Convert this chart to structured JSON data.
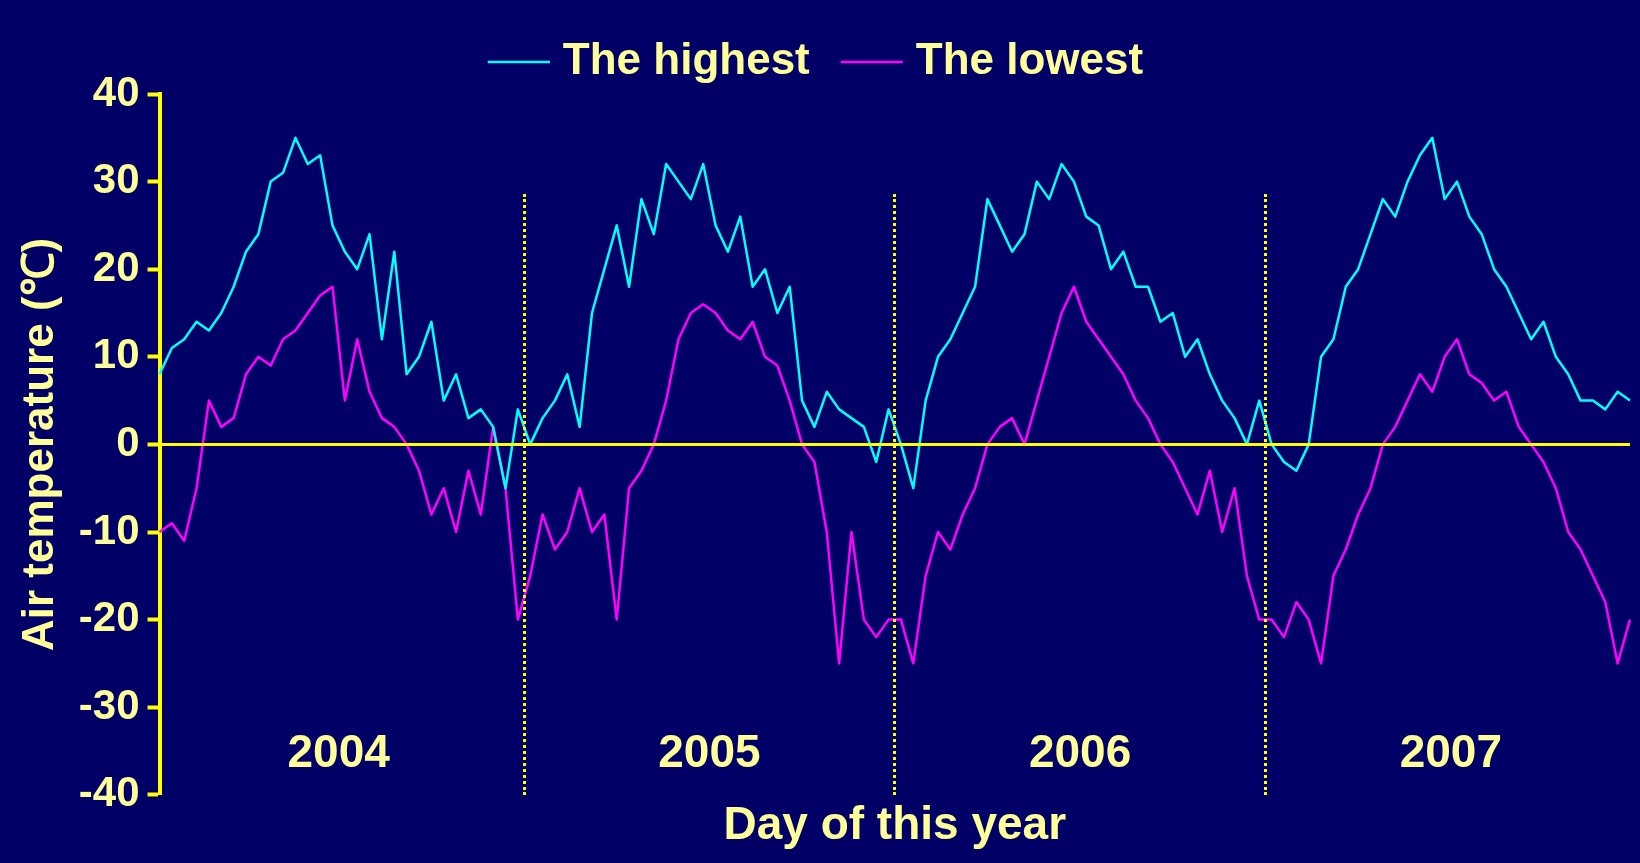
{
  "chart_data": {
    "type": "line",
    "xlabel": "Day of this year",
    "ylabel": "Air temperature (℃)",
    "categories": [
      null,
      null,
      null,
      null,
      null,
      null,
      null,
      null,
      null,
      null,
      null,
      null,
      null,
      null,
      null,
      null,
      null,
      null,
      null,
      null,
      null,
      null,
      null,
      null,
      null,
      null,
      null,
      null,
      null,
      null,
      null,
      null,
      null,
      null,
      null,
      null,
      null,
      null,
      null,
      null,
      null,
      null,
      null,
      null,
      null,
      null,
      null,
      null,
      null,
      null,
      null,
      null,
      null,
      null,
      null,
      null,
      null,
      null,
      null,
      null,
      null,
      null,
      null,
      null,
      null,
      null,
      null,
      null,
      null,
      null,
      null,
      null,
      null,
      null,
      null,
      null,
      null,
      null,
      null,
      null,
      null,
      null,
      null,
      null,
      null,
      null,
      null,
      null,
      null,
      null,
      null,
      null,
      null,
      null,
      null,
      null,
      null,
      null,
      null,
      null,
      null,
      null,
      null,
      null,
      null,
      null,
      null,
      null,
      null,
      null,
      null,
      null,
      null,
      null,
      null,
      null,
      null,
      null,
      null,
      null
    ],
    "series": [
      {
        "name": "The highest",
        "color": "#00ffff",
        "values": [
          8,
          11,
          12,
          14,
          13,
          15,
          18,
          22,
          24,
          30,
          31,
          35,
          32,
          33,
          25,
          22,
          20,
          24,
          12,
          22,
          8,
          10,
          14,
          5,
          8,
          3,
          4,
          2,
          -5,
          4,
          0,
          3,
          5,
          8,
          2,
          15,
          20,
          25,
          18,
          28,
          24,
          32,
          30,
          28,
          32,
          25,
          22,
          26,
          18,
          20,
          15,
          18,
          5,
          2,
          6,
          4,
          3,
          2,
          -2,
          4,
          0,
          -5,
          5,
          10,
          12,
          15,
          18,
          28,
          25,
          22,
          24,
          30,
          28,
          32,
          30,
          26,
          25,
          20,
          22,
          18,
          18,
          14,
          15,
          10,
          12,
          8,
          5,
          3,
          0,
          5,
          0,
          -2,
          -3,
          0,
          10,
          12,
          18,
          20,
          24,
          28,
          26,
          30,
          33,
          35,
          28,
          30,
          26,
          24,
          20,
          18,
          15,
          12,
          14,
          10,
          8,
          5,
          5,
          4,
          6,
          5
        ]
      },
      {
        "name": "The lowest",
        "color": "#ff00ff",
        "values": [
          -10,
          -9,
          -11,
          -5,
          5,
          2,
          3,
          8,
          10,
          9,
          12,
          13,
          15,
          17,
          18,
          5,
          12,
          6,
          3,
          2,
          0,
          -3,
          -8,
          -5,
          -10,
          -3,
          -8,
          2,
          -5,
          -20,
          -15,
          -8,
          -12,
          -10,
          -5,
          -10,
          -8,
          -20,
          -5,
          -3,
          0,
          5,
          12,
          15,
          16,
          15,
          13,
          12,
          14,
          10,
          9,
          5,
          0,
          -2,
          -10,
          -25,
          -10,
          -20,
          -22,
          -20,
          -20,
          -25,
          -15,
          -10,
          -12,
          -8,
          -5,
          0,
          2,
          3,
          0,
          5,
          10,
          15,
          18,
          14,
          12,
          10,
          8,
          5,
          3,
          0,
          -2,
          -5,
          -8,
          -3,
          -10,
          -5,
          -15,
          -20,
          -20,
          -22,
          -18,
          -20,
          -25,
          -15,
          -12,
          -8,
          -5,
          0,
          2,
          5,
          8,
          6,
          10,
          12,
          8,
          7,
          5,
          6,
          2,
          0,
          -2,
          -5,
          -10,
          -12,
          -15,
          -18,
          -25,
          -20
        ]
      }
    ],
    "ylim": [
      -40,
      40
    ],
    "yticks": [
      -40,
      -30,
      -20,
      -10,
      0,
      10,
      20,
      30,
      40
    ],
    "ref_lines": [
      {
        "axis": "y",
        "value": 0,
        "color": "#ffff00",
        "line_style": "solid"
      }
    ],
    "annotations": [
      "2004",
      "2005",
      "2006",
      "2007"
    ],
    "legend": "top",
    "grid": false,
    "marker": "none",
    "line_style": "solid",
    "tick_labels": "y"
  }
}
